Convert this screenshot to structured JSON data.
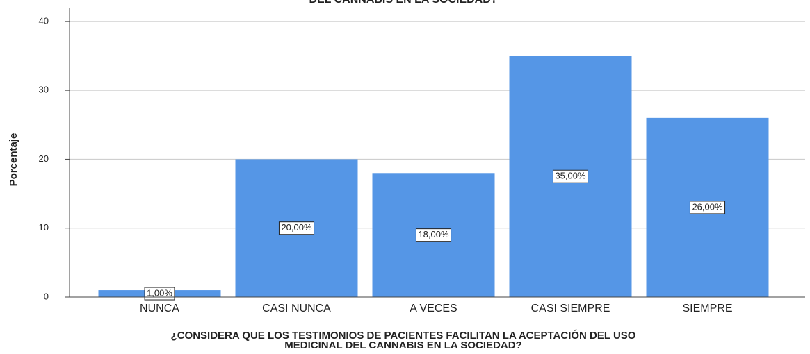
{
  "chart_data": {
    "type": "bar",
    "title": "DEL CANNABIS EN LA SOCIEDAD?",
    "xlabel": [
      "¿CONSIDERA QUE LOS TESTIMONIOS DE PACIENTES FACILITAN LA ACEPTACIÓN DEL USO",
      "MEDICINAL DEL CANNABIS EN LA SOCIEDAD?"
    ],
    "ylabel": "Porcentaje",
    "categories": [
      "NUNCA",
      "CASI NUNCA",
      "A VECES",
      "CASI SIEMPRE",
      "SIEMPRE"
    ],
    "values": [
      1,
      20,
      18,
      35,
      26
    ],
    "value_labels": [
      "1,00%",
      "20,00%",
      "18,00%",
      "35,00%",
      "26,00%"
    ],
    "color": "#5596e6",
    "ylim": [
      0,
      42
    ],
    "yticks": [
      0,
      10,
      20,
      30,
      40
    ],
    "grid": true
  }
}
